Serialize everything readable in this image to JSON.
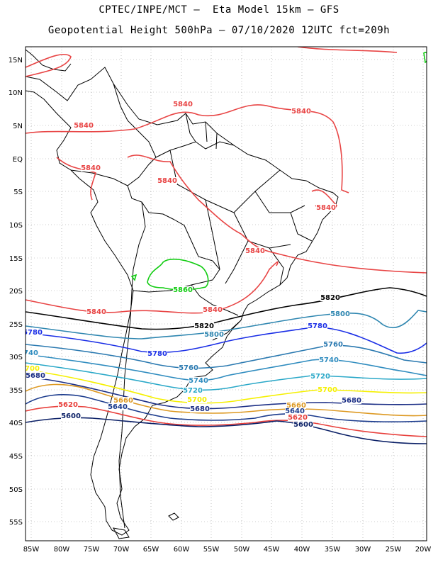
{
  "title_line1": "CPTEC/INPE/MCT –  Eta Model 15km – GFS",
  "title_line2": "Geopotential Height 500hPa – 07/10/2020 12UTC fct=209h",
  "lat_labels": [
    "15N",
    "10N",
    "5N",
    "EQ",
    "5S",
    "10S",
    "15S",
    "20S",
    "25S",
    "30S",
    "35S",
    "40S",
    "45S",
    "50S",
    "55S"
  ],
  "lon_labels": [
    "85W",
    "80W",
    "75W",
    "70W",
    "65W",
    "60W",
    "55W",
    "50W",
    "45W",
    "40W",
    "35W",
    "30W",
    "25W",
    "20W"
  ],
  "colors": {
    "c5580": "#0a1f66",
    "c5620": "#e8403c",
    "c5640": "#1a3a8c",
    "c5660": "#dd9922",
    "c5680": "#1c2f86",
    "c5700": "#f5f000",
    "c5720": "#2aa8c8",
    "c5740": "#2f8cbf",
    "c5760": "#2a79b0",
    "c5780": "#1a2ee6",
    "c5800": "#2e86b0",
    "c5820": "#000000",
    "c5840": "#e84545",
    "c5860": "#11cc11",
    "coast": "#000000"
  },
  "contour_labels": [
    {
      "text": "5840",
      "color": "c5840"
    },
    {
      "text": "5840",
      "color": "c5840"
    },
    {
      "text": "5840",
      "color": "c5840"
    },
    {
      "text": "5840",
      "color": "c5840"
    },
    {
      "text": "5840",
      "color": "c5840"
    },
    {
      "text": "5840",
      "color": "c5840"
    },
    {
      "text": "5840",
      "color": "c5840"
    },
    {
      "text": "5840",
      "color": "c5840"
    },
    {
      "text": "5840",
      "color": "c5840"
    },
    {
      "text": "5860",
      "color": "c5860"
    },
    {
      "text": "5820",
      "color": "c5820"
    },
    {
      "text": "5820",
      "color": "c5820"
    },
    {
      "text": "5800",
      "color": "c5800"
    },
    {
      "text": "5800",
      "color": "c5800"
    },
    {
      "text": "5780",
      "color": "c5780"
    },
    {
      "text": "5780",
      "color": "c5780"
    },
    {
      "text": "5780",
      "color": "c5780"
    },
    {
      "text": "5760",
      "color": "c5760"
    },
    {
      "text": "5760",
      "color": "c5760"
    },
    {
      "text": "5740",
      "color": "c5740"
    },
    {
      "text": "5740",
      "color": "c5740"
    },
    {
      "text": "5740",
      "color": "c5740"
    },
    {
      "text": "5720",
      "color": "c5720"
    },
    {
      "text": "5720",
      "color": "c5720"
    },
    {
      "text": "5700",
      "color": "c5700"
    },
    {
      "text": "5700",
      "color": "c5700"
    },
    {
      "text": "5700",
      "color": "c5700"
    },
    {
      "text": "5680",
      "color": "c5680"
    },
    {
      "text": "5680",
      "color": "c5680"
    },
    {
      "text": "5680",
      "color": "c5680"
    },
    {
      "text": "5660",
      "color": "c5660"
    },
    {
      "text": "5660",
      "color": "c5660"
    },
    {
      "text": "5640",
      "color": "c5640"
    },
    {
      "text": "5640",
      "color": "c5640"
    },
    {
      "text": "5620",
      "color": "c5620"
    },
    {
      "text": "5620",
      "color": "c5620"
    },
    {
      "text": "5600",
      "color": "c5580"
    },
    {
      "text": "5600",
      "color": "c5580"
    }
  ]
}
